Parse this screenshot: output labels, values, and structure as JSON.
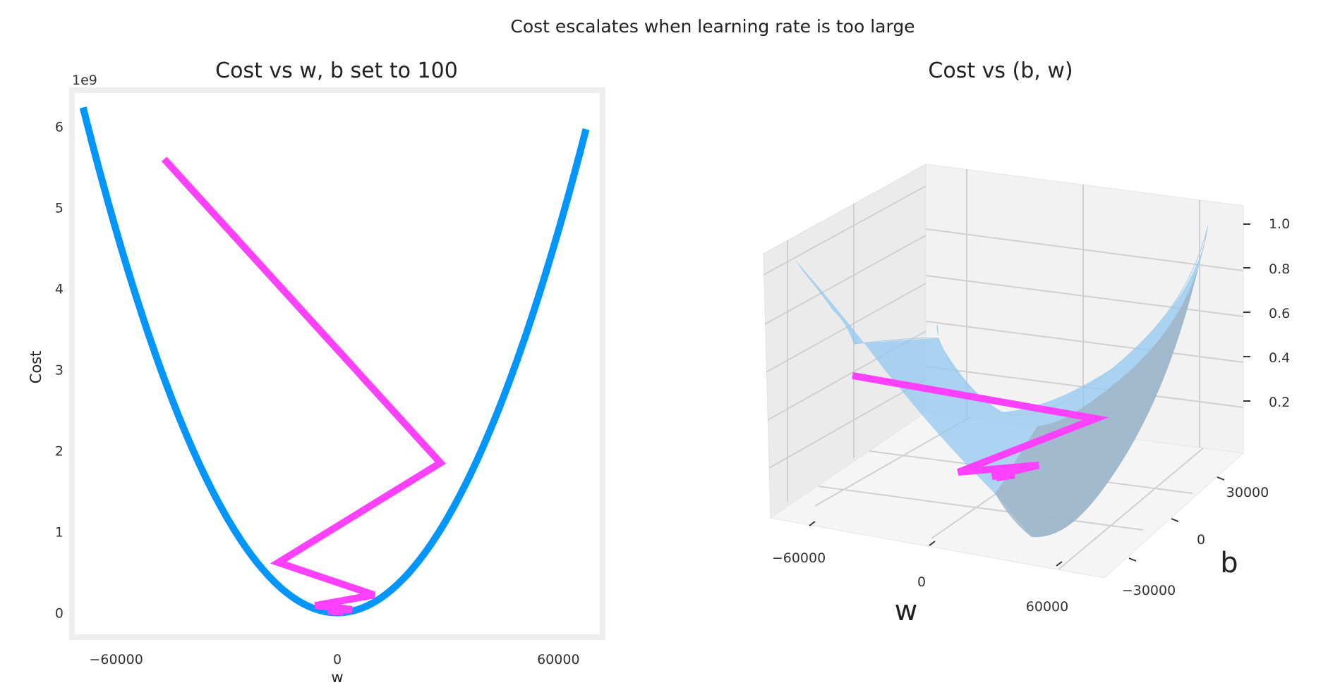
{
  "figure": {
    "suptitle": "Cost escalates when learning rate is too large"
  },
  "chart_data": [
    {
      "type": "line",
      "title": "Cost vs w, b set to 100",
      "xlabel": "w",
      "ylabel": "Cost",
      "y_offset_label": "1e9",
      "xlim": [
        -72000,
        72000
      ],
      "ylim": [
        -0.3,
        6.45
      ],
      "xticks": [
        -60000,
        0,
        60000
      ],
      "xtick_labels": [
        "−60000",
        "0",
        "60000"
      ],
      "yticks": [
        0,
        1,
        2,
        3,
        4,
        5,
        6
      ],
      "ytick_labels": [
        "0",
        "1",
        "2",
        "3",
        "4",
        "5",
        "6"
      ],
      "grid": false,
      "series": [
        {
          "role": "cost-curve",
          "color": "#0096ff",
          "curve": {
            "type": "parabola",
            "a": 1.31e-09,
            "w0": 0,
            "x_range": [
              -69000,
              67500
            ]
          }
        },
        {
          "role": "gradient-descent-path",
          "color": "#ff40ff",
          "x": [
            -47000,
            28000,
            -16000,
            10000,
            -6000,
            4000,
            -2500,
            1500
          ],
          "y": [
            5.6,
            1.85,
            0.62,
            0.22,
            0.09,
            0.04,
            0.02,
            0.01
          ]
        }
      ]
    },
    {
      "type": "surface3d",
      "title": "Cost vs (b, w)",
      "xlabel": "w",
      "ylabel": "b",
      "zlabel": "",
      "w_tick_labels": [
        "−60000",
        "0",
        "60000"
      ],
      "b_tick_labels": [
        "−30000",
        "0",
        "30000"
      ],
      "z_tick_labels": [
        "1.0",
        "0.8",
        "0.6",
        "0.4",
        "0.2"
      ],
      "surface_color": "#90c8f0",
      "path_color": "#ff40ff"
    }
  ]
}
